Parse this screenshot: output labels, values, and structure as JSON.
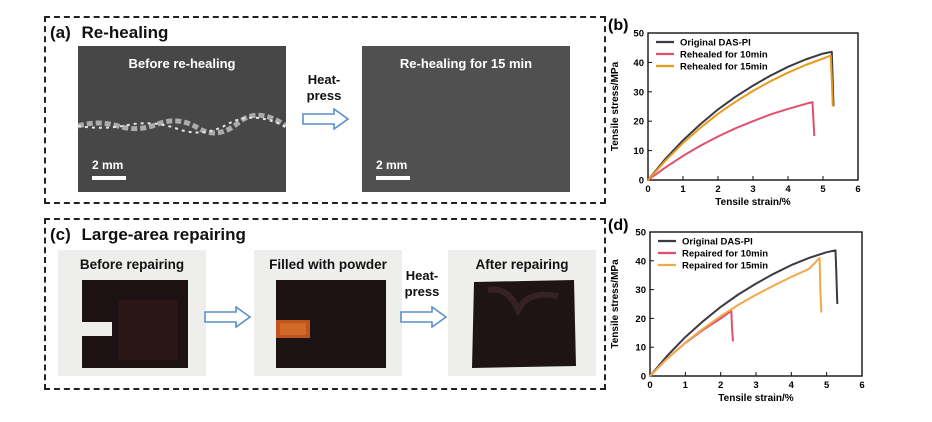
{
  "panel_a": {
    "letter": "(a)",
    "title": "Re-healing",
    "left_image_label": "Before re-healing",
    "right_image_label": "Re-healing for 15 min",
    "scale_label": "2 mm",
    "arrow_text_line1": "Heat-",
    "arrow_text_line2": "press"
  },
  "panel_c": {
    "letter": "(c)",
    "title": "Large-area repairing",
    "photo1_label": "Before repairing",
    "photo2_label": "Filled with powder",
    "photo3_label": "After repairing",
    "arrow_text_line1": "Heat-",
    "arrow_text_line2": "press"
  },
  "colors": {
    "original": "#3a3a44",
    "ten_min_b": "#e0506e",
    "fifteen_min_b": "#e89a1c",
    "ten_min_d": "#e0506e",
    "fifteen_min_d": "#f2a84a"
  },
  "chart_data": [
    {
      "panel": "(b)",
      "type": "line",
      "xlabel": "Tensile strain/%",
      "ylabel": "Tensile stress/MPa",
      "xlim": [
        0,
        6
      ],
      "ylim": [
        0,
        50
      ],
      "xticks": [
        "0",
        "1",
        "2",
        "3",
        "4",
        "5",
        "6"
      ],
      "yticks": [
        "0",
        "10",
        "20",
        "30",
        "40",
        "50"
      ],
      "legend_position": "top-left",
      "series": [
        {
          "name": "Original DAS-PI",
          "color_key": "original",
          "x": [
            0,
            0.5,
            1,
            1.5,
            2,
            2.5,
            3,
            3.5,
            4,
            4.5,
            5,
            5.25,
            5.27,
            5.3
          ],
          "y": [
            0,
            7.2,
            13.5,
            19,
            24,
            28.3,
            32.1,
            35.5,
            38.5,
            41,
            43,
            43.6,
            37,
            25
          ]
        },
        {
          "name": "Rehealed for 10min",
          "color_key": "ten_min_b",
          "x": [
            0,
            0.5,
            1,
            1.5,
            2,
            2.5,
            3,
            3.5,
            4,
            4.5,
            4.7,
            4.72,
            4.75
          ],
          "y": [
            0,
            4.3,
            8.2,
            11.7,
            14.8,
            17.6,
            20,
            22.3,
            24.2,
            25.9,
            26.5,
            22,
            15
          ]
        },
        {
          "name": "Rehealed for 15min",
          "color_key": "fifteen_min_b",
          "x": [
            0,
            0.5,
            1,
            1.5,
            2,
            2.5,
            3,
            3.5,
            4,
            4.5,
            5,
            5.22,
            5.25,
            5.28
          ],
          "y": [
            0,
            6.6,
            12.6,
            17.8,
            22.5,
            26.6,
            30.3,
            33.6,
            36.5,
            39.1,
            41.3,
            42.3,
            34,
            25
          ]
        }
      ]
    },
    {
      "panel": "(d)",
      "type": "line",
      "xlabel": "Tensile strain/%",
      "ylabel": "Tensile stress/MPa",
      "xlim": [
        0,
        6
      ],
      "ylim": [
        0,
        50
      ],
      "xticks": [
        "0",
        "1",
        "2",
        "3",
        "4",
        "5",
        "6"
      ],
      "yticks": [
        "0",
        "10",
        "20",
        "30",
        "40",
        "50"
      ],
      "legend_position": "top-left",
      "series": [
        {
          "name": "Original DAS-PI",
          "color_key": "original",
          "x": [
            0,
            0.5,
            1,
            1.5,
            2,
            2.5,
            3,
            3.5,
            4,
            4.5,
            5,
            5.25,
            5.27,
            5.3
          ],
          "y": [
            0,
            7.2,
            13.5,
            19,
            24,
            28.3,
            32.1,
            35.5,
            38.5,
            41,
            43,
            43.6,
            37,
            25
          ]
        },
        {
          "name": "Repaired for 10min",
          "color_key": "ten_min_d",
          "x": [
            0,
            0.5,
            1,
            1.5,
            2,
            2.3,
            2.32,
            2.35
          ],
          "y": [
            0,
            6.2,
            11.5,
            16,
            20,
            22.6,
            17,
            12
          ]
        },
        {
          "name": "Repaired for 15min",
          "color_key": "fifteen_min_d",
          "x": [
            0,
            0.5,
            1,
            1.5,
            2,
            2.5,
            3,
            3.5,
            4,
            4.5,
            4.8,
            4.82,
            4.85
          ],
          "y": [
            0,
            6.2,
            11.6,
            16.4,
            20.8,
            24.7,
            28.2,
            31.4,
            34.4,
            37.2,
            41,
            30,
            22
          ]
        }
      ]
    }
  ]
}
